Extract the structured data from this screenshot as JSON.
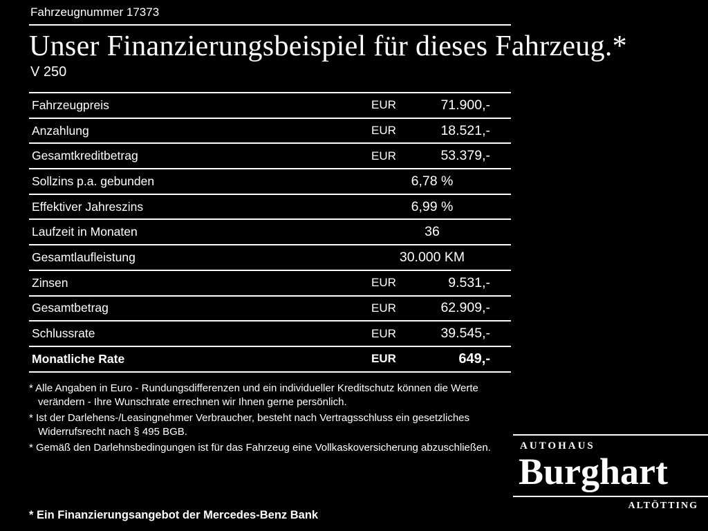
{
  "header": {
    "vehicle_number": "Fahrzeugnummer 17373",
    "title": "Unser Finanzierungsbeispiel für dieses Fahrzeug.*",
    "model": "V 250"
  },
  "table": {
    "rows": [
      {
        "label": "Fahrzeugpreis",
        "currency": "EUR",
        "value": "71.900,-"
      },
      {
        "label": "Anzahlung",
        "currency": "EUR",
        "value": "18.521,-"
      },
      {
        "label": "Gesamtkreditbetrag",
        "currency": "EUR",
        "value": "53.379,-"
      },
      {
        "label": "Sollzins p.a. gebunden",
        "currency": "",
        "value": "6,78 %"
      },
      {
        "label": "Effektiver Jahreszins",
        "currency": "",
        "value": "6,99 %"
      },
      {
        "label": "Laufzeit in Monaten",
        "currency": "",
        "value": "36"
      },
      {
        "label": "Gesamtlaufleistung",
        "currency": "",
        "value": "30.000 KM"
      },
      {
        "label": "Zinsen",
        "currency": "EUR",
        "value": "9.531,-"
      },
      {
        "label": "Gesamtbetrag",
        "currency": "EUR",
        "value": "62.909,-"
      },
      {
        "label": "Schlussrate",
        "currency": "EUR",
        "value": "39.545,-"
      },
      {
        "label": "Monatliche Rate",
        "currency": "EUR",
        "value": "649,-"
      }
    ]
  },
  "footnotes": [
    "* Alle Angaben in Euro - Rundungsdifferenzen und ein individueller Kreditschutz können die Werte verändern - Ihre Wunschrate errechnen wir Ihnen gerne persönlich.",
    "* Ist der Darlehens-/Leasingnehmer Verbraucher, besteht nach Vertragsschluss ein gesetzliches Widerrufsrecht nach § 495 BGB.",
    "* Gemäß den Darlehnsbedingungen ist für das Fahrzeug eine Vollkaskoversicherung abzuschließen."
  ],
  "financing_note": "* Ein Finanzierungsangebot der Mercedes-Benz Bank",
  "dealer": {
    "line1": "AUTOHAUS",
    "name": "Burghart",
    "city": "ALTÖTTING"
  },
  "colors": {
    "background": "#000000",
    "text": "#ffffff"
  }
}
